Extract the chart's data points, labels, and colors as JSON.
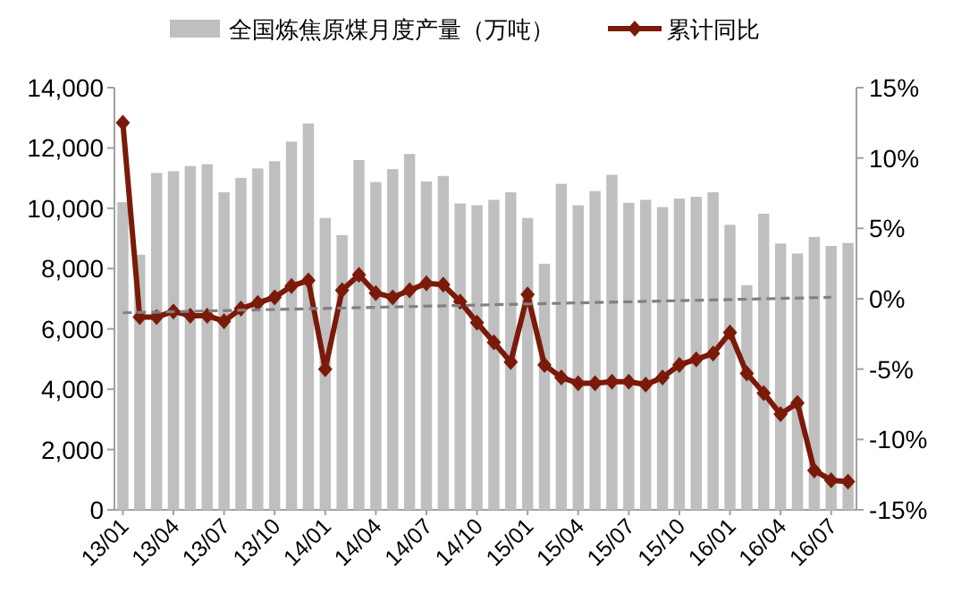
{
  "chart_data": {
    "type": "bar",
    "legend": "top",
    "categories": [
      "13/01",
      null,
      null,
      "13/04",
      null,
      null,
      "13/07",
      null,
      null,
      "13/10",
      null,
      null,
      "14/01",
      null,
      null,
      "14/04",
      null,
      null,
      "14/07",
      null,
      null,
      "14/10",
      null,
      null,
      "15/01",
      null,
      null,
      "15/04",
      null,
      null,
      "15/07",
      null,
      null,
      "15/10",
      null,
      null,
      "16/01",
      null,
      null,
      "16/04",
      null,
      null,
      "16/07",
      null
    ],
    "ylim": [
      0,
      14000
    ],
    "yticks": [
      0,
      {
        "value": 2000,
        "label": "2,000"
      },
      {
        "value": 4000,
        "label": "4,000"
      },
      {
        "value": 6000,
        "label": "6,000"
      },
      {
        "value": 8000,
        "label": "8,000"
      },
      {
        "value": 10000,
        "label": "10,000"
      },
      {
        "value": 12000,
        "label": "12,000"
      },
      {
        "value": 14000,
        "label": "14,000"
      }
    ],
    "y2lim": [
      -15,
      15
    ],
    "y2ticks": [
      {
        "value": -15,
        "label": "-15%"
      },
      {
        "value": -10,
        "label": "-10%"
      },
      {
        "value": -5,
        "label": "-5%"
      },
      {
        "value": 0,
        "label": "0%"
      },
      {
        "value": 5,
        "label": "5%"
      },
      {
        "value": 10,
        "label": "10%"
      },
      {
        "value": 15,
        "label": "15%"
      }
    ],
    "series": [
      {
        "name": "全国炼焦原煤月度产量（万吨）",
        "color": "#bfbfbf",
        "values": [
          10200,
          8460,
          11170,
          11230,
          11400,
          11460,
          10530,
          11010,
          11320,
          11560,
          12210,
          12810,
          9680,
          9110,
          11600,
          10870,
          11300,
          11800,
          10890,
          11070,
          10160,
          10100,
          10280,
          10530,
          9680,
          8160,
          10810,
          10100,
          10570,
          11110,
          10180,
          10280,
          10040,
          10320,
          10380,
          10530,
          9450,
          7450,
          9820,
          8830,
          8500,
          9050,
          8750,
          8850
        ]
      },
      {
        "name": "累计同比",
        "type": "line",
        "axis": "y2",
        "color": "#7b1a0a",
        "marker": "diamond",
        "values": [
          12.5,
          -1.3,
          -1.3,
          -0.9,
          -1.2,
          -1.2,
          -1.6,
          -0.7,
          -0.3,
          0.1,
          0.9,
          1.3,
          -5.0,
          0.6,
          1.7,
          0.4,
          0.1,
          0.6,
          1.1,
          1.0,
          -0.2,
          -1.7,
          -3.1,
          -4.5,
          0.3,
          -4.7,
          -5.6,
          -6.0,
          -6.0,
          -5.9,
          -5.9,
          -6.1,
          -5.6,
          -4.7,
          -4.3,
          -3.9,
          -2.4,
          -5.3,
          -6.7,
          -8.2,
          -7.4,
          -12.2,
          -12.9,
          -13.0
        ]
      },
      {
        "type": "line",
        "axis": "y2",
        "color": "#808080",
        "line_style": "dashed",
        "x": [
          "13/01",
          "16/07"
        ],
        "values": [
          -1,
          0.1
        ]
      }
    ]
  }
}
